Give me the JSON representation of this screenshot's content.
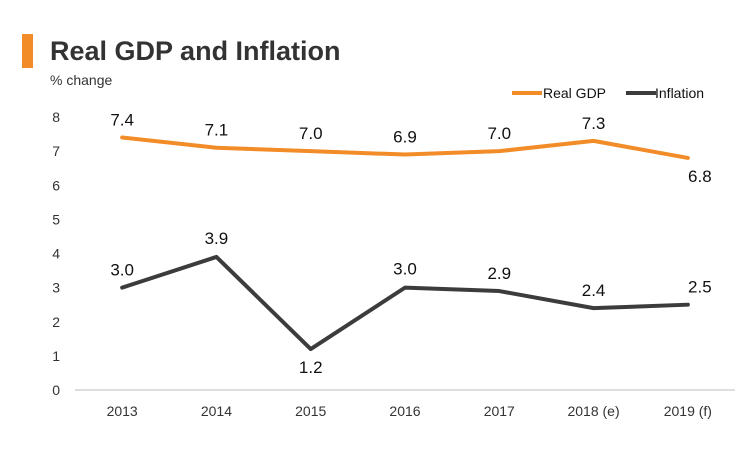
{
  "header": {
    "title": "Real GDP and Inflation",
    "subtitle": "% change"
  },
  "colors": {
    "gdp": "#f28c28",
    "inflation": "#3c3c3c",
    "accent": "#f28c28"
  },
  "chart_data": {
    "type": "line",
    "title": "Real GDP and Inflation",
    "ylabel": "% change",
    "xlabel": "",
    "categories": [
      "2013",
      "2014",
      "2015",
      "2016",
      "2017",
      "2018 (e)",
      "2019 (f)"
    ],
    "yticks": [
      "0",
      "1",
      "2",
      "3",
      "4",
      "5",
      "6",
      "7",
      "8"
    ],
    "ylim": [
      0,
      8
    ],
    "legend_position": "top-right",
    "series": [
      {
        "name": "Real GDP",
        "values": [
          7.4,
          7.1,
          7.0,
          6.9,
          7.0,
          7.3,
          6.8
        ],
        "labels": [
          "7.4",
          "7.1",
          "7.0",
          "6.9",
          "7.0",
          "7.3",
          "6.8"
        ]
      },
      {
        "name": "Inflation",
        "values": [
          3.0,
          3.9,
          1.2,
          3.0,
          2.9,
          2.4,
          2.5
        ],
        "labels": [
          "3.0",
          "3.9",
          "1.2",
          "3.0",
          "2.9",
          "2.4",
          "2.5"
        ]
      }
    ]
  }
}
